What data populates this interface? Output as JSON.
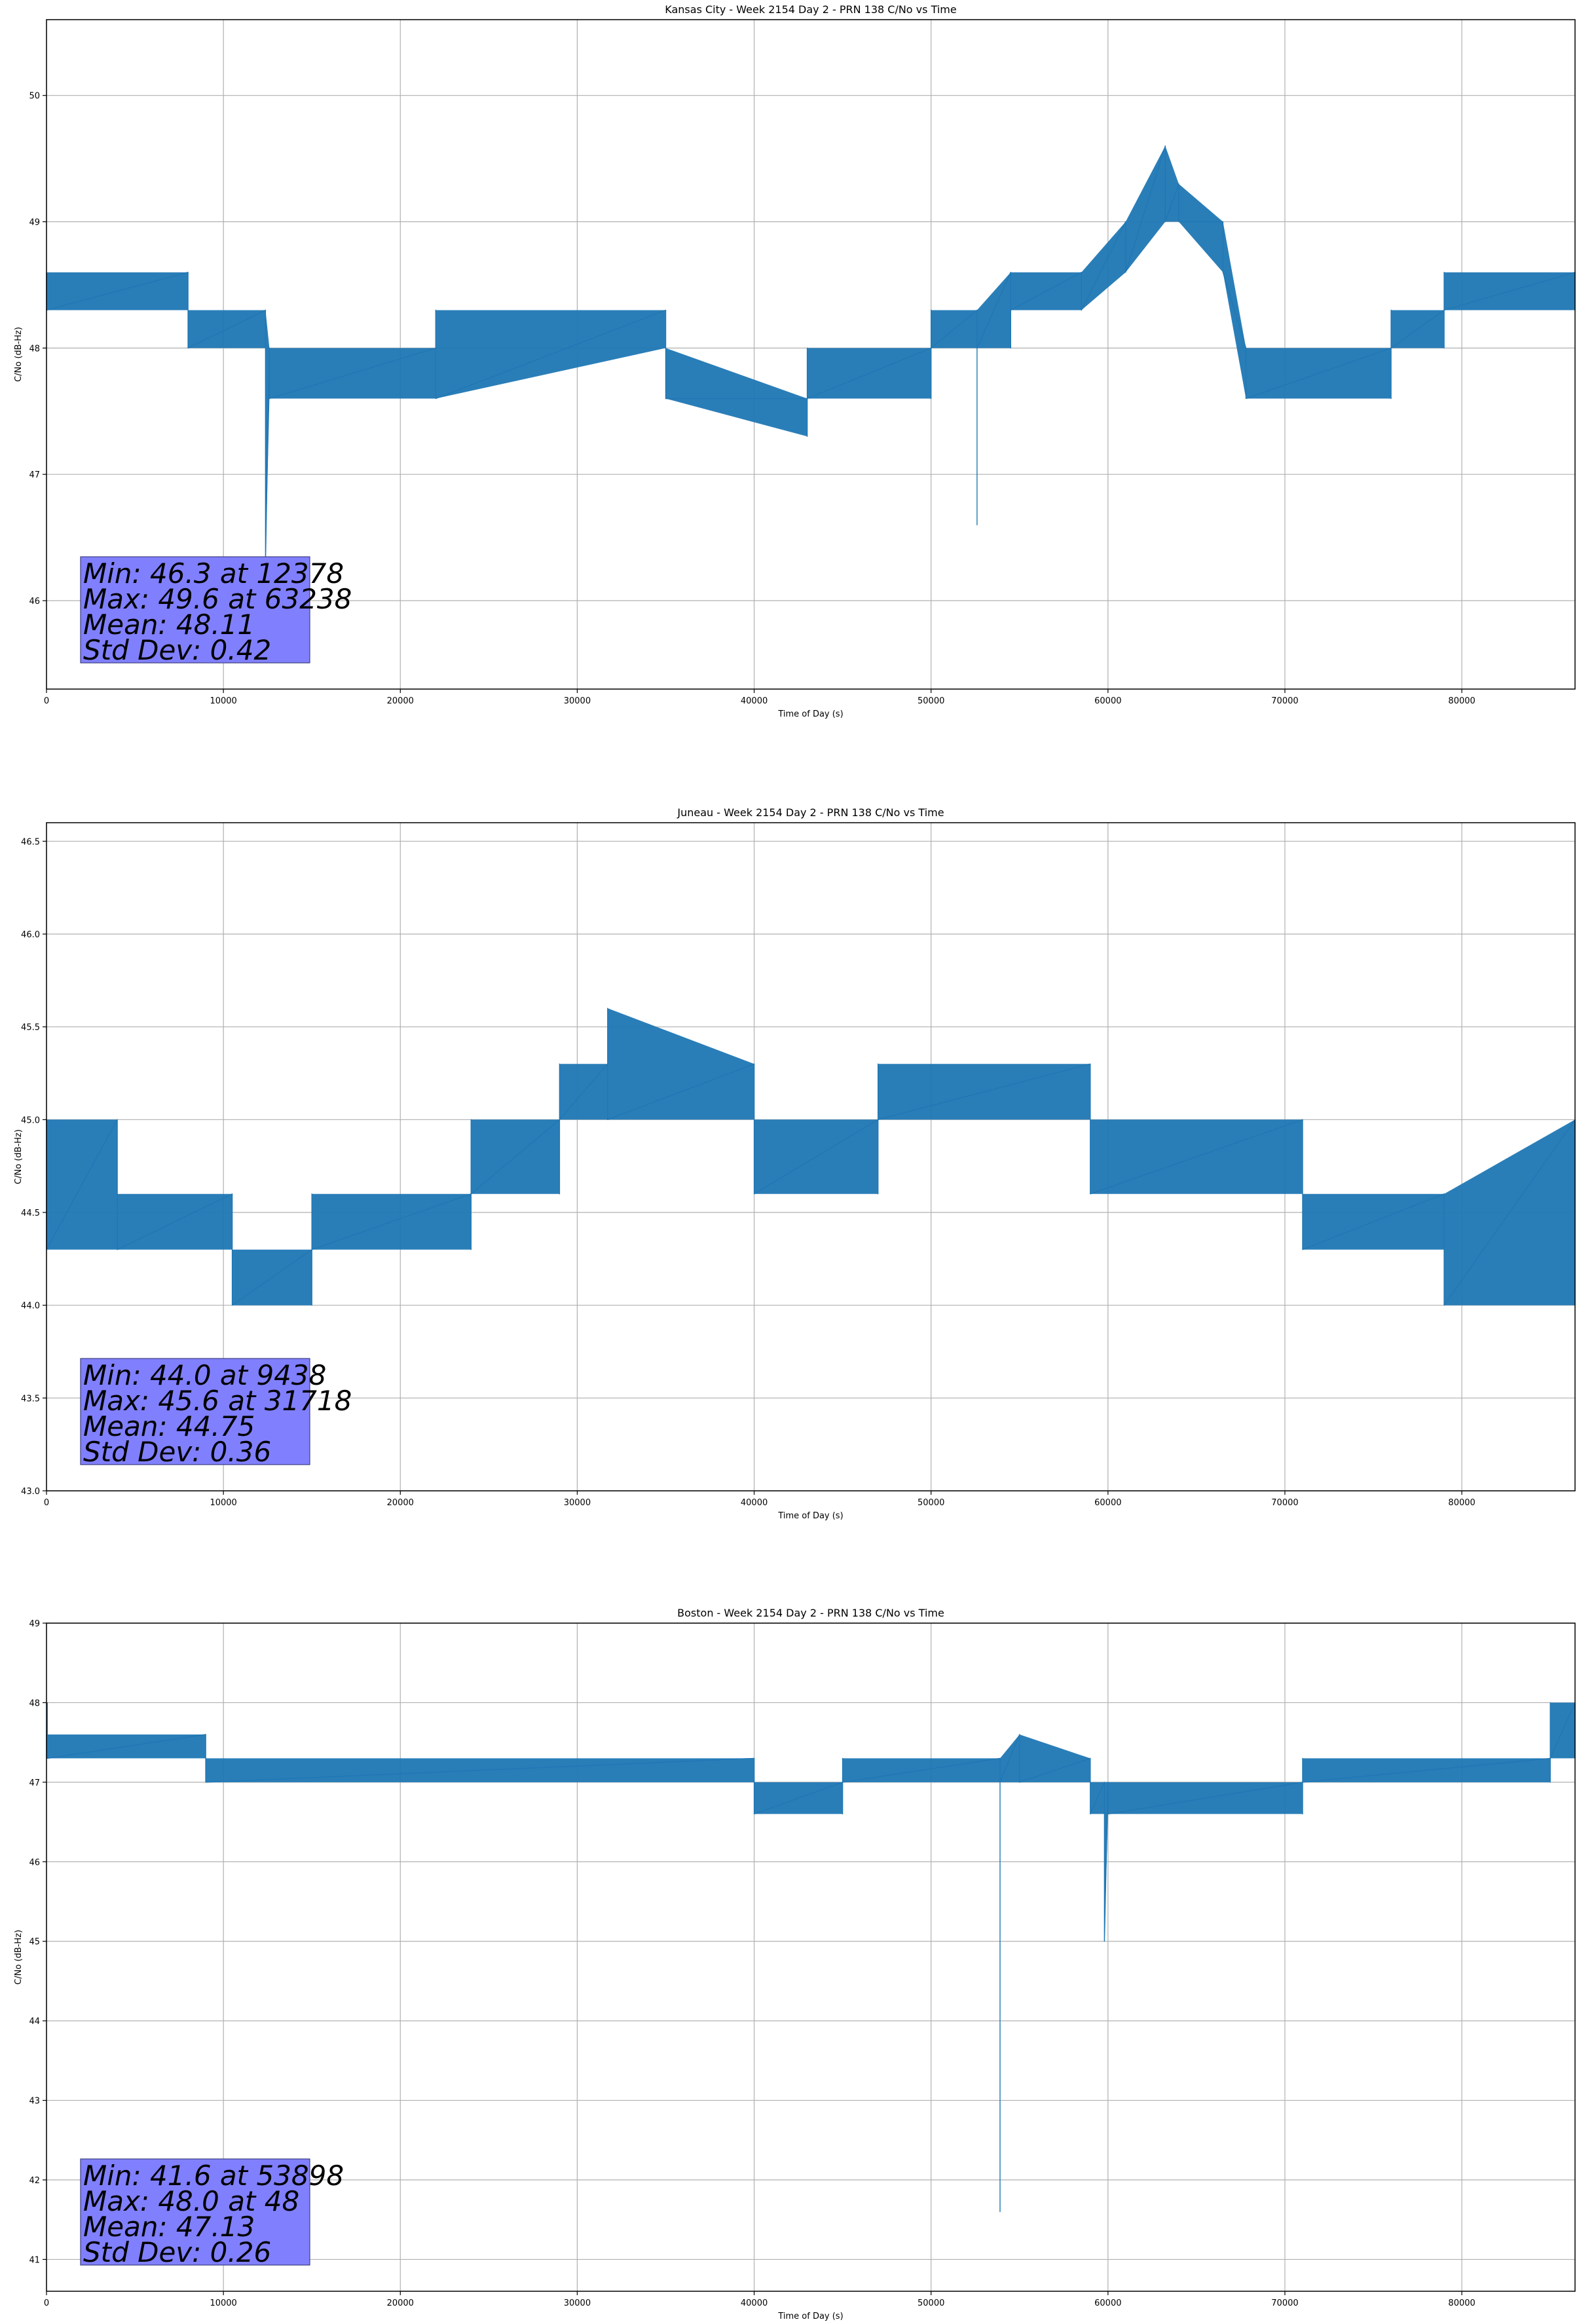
{
  "chart_data": [
    {
      "type": "line",
      "title": "Kansas City - Week 2154 Day 2 - PRN 138 C/No vs Time",
      "xlabel": "Time of Day (s)",
      "ylabel": "C/No (dB-Hz)",
      "xlim": [
        0,
        86400
      ],
      "ylim": [
        45.3,
        50.6
      ],
      "xticks": [
        0,
        10000,
        20000,
        30000,
        40000,
        50000,
        60000,
        70000,
        80000
      ],
      "yticks": [
        46,
        47,
        48,
        49,
        50
      ],
      "grid": true,
      "color": "#1f77b4",
      "stats_box": {
        "lines": [
          "Min: 46.3 at 12378",
          "Max: 49.6 at 63238",
          "Mean: 48.11",
          "Std Dev: 0.42"
        ],
        "color": "#8080ff",
        "position": "bottom-left"
      },
      "series": [
        {
          "x": [
            0,
            8000,
            8000,
            12378,
            12378,
            12378,
            12600,
            12600,
            22000,
            22000,
            35000,
            35000,
            43000,
            43000,
            50000,
            50000,
            52600,
            52600,
            52600,
            54500,
            54500,
            58500,
            58500,
            61000,
            61000,
            63238,
            63238,
            64000,
            66500,
            66500,
            67800,
            67800,
            76000,
            76000,
            79000,
            79000,
            86400
          ],
          "low": [
            48.3,
            48.3,
            48.0,
            48.0,
            46.3,
            46.3,
            47.6,
            47.6,
            47.6,
            47.6,
            48.0,
            47.6,
            47.3,
            47.6,
            47.6,
            48.0,
            48.0,
            46.6,
            48.0,
            48.0,
            48.3,
            48.3,
            48.3,
            48.6,
            48.6,
            49.0,
            49.0,
            49.0,
            48.6,
            48.6,
            47.6,
            47.6,
            47.6,
            48.0,
            48.0,
            48.3,
            48.3
          ],
          "high": [
            48.6,
            48.6,
            48.3,
            48.3,
            48.3,
            48.3,
            48.0,
            48.0,
            48.0,
            48.3,
            48.3,
            48.0,
            47.6,
            48.0,
            48.0,
            48.3,
            48.3,
            48.3,
            48.3,
            48.6,
            48.6,
            48.6,
            48.6,
            49.0,
            49.0,
            49.6,
            49.6,
            49.3,
            49.0,
            49.0,
            48.0,
            48.0,
            48.0,
            48.3,
            48.3,
            48.6,
            48.6
          ]
        }
      ]
    },
    {
      "type": "line",
      "title": "Juneau - Week 2154 Day 2 - PRN 138 C/No vs Time",
      "xlabel": "Time of Day (s)",
      "ylabel": "C/No (dB-Hz)",
      "xlim": [
        0,
        86400
      ],
      "ylim": [
        43.0,
        46.6
      ],
      "xticks": [
        0,
        10000,
        20000,
        30000,
        40000,
        50000,
        60000,
        70000,
        80000
      ],
      "yticks": [
        43.0,
        43.5,
        44.0,
        44.5,
        45.0,
        45.5,
        46.0,
        46.5
      ],
      "grid": true,
      "color": "#1f77b4",
      "stats_box": {
        "lines": [
          "Min: 44.0 at 9438",
          "Max: 45.6 at 31718",
          "Mean: 44.75",
          "Std Dev: 0.36"
        ],
        "color": "#8080ff",
        "position": "bottom-left"
      },
      "series": [
        {
          "x": [
            0,
            4000,
            4000,
            10500,
            10500,
            15000,
            15000,
            24000,
            24000,
            29000,
            29000,
            31718,
            31718,
            40000,
            40000,
            47000,
            47000,
            59000,
            59000,
            71000,
            71000,
            79000,
            79000,
            86400
          ],
          "low": [
            44.3,
            44.3,
            44.3,
            44.3,
            44.0,
            44.0,
            44.3,
            44.3,
            44.6,
            44.6,
            45.0,
            45.0,
            45.0,
            45.0,
            44.6,
            44.6,
            45.0,
            45.0,
            44.6,
            44.6,
            44.3,
            44.3,
            44.0,
            44.0
          ],
          "high": [
            45.0,
            45.0,
            44.6,
            44.6,
            44.3,
            44.3,
            44.6,
            44.6,
            45.0,
            45.0,
            45.3,
            45.3,
            45.6,
            45.3,
            45.0,
            45.0,
            45.3,
            45.3,
            45.0,
            45.0,
            44.6,
            44.6,
            44.6,
            45.0
          ]
        }
      ]
    },
    {
      "type": "line",
      "title": "Boston - Week 2154 Day 2 - PRN 138 C/No vs Time",
      "xlabel": "Time of Day (s)",
      "ylabel": "C/No (dB-Hz)",
      "xlim": [
        0,
        86400
      ],
      "ylim": [
        40.6,
        49.0
      ],
      "xticks": [
        0,
        10000,
        20000,
        30000,
        40000,
        50000,
        60000,
        70000,
        80000
      ],
      "yticks": [
        41,
        42,
        43,
        44,
        45,
        46,
        47,
        48,
        49
      ],
      "grid": true,
      "color": "#1f77b4",
      "stats_box": {
        "lines": [
          "Min: 41.6 at 53898",
          "Max: 48.0 at 48",
          "Mean: 47.13",
          "Std Dev: 0.26"
        ],
        "color": "#8080ff",
        "position": "bottom-left"
      },
      "series": [
        {
          "x": [
            0,
            48,
            48,
            9000,
            9000,
            40000,
            40000,
            45000,
            45000,
            53898,
            53898,
            53898,
            55000,
            59000,
            59000,
            59800,
            59800,
            60000,
            60000,
            71000,
            71000,
            85000,
            85000,
            86400
          ],
          "low": [
            47.3,
            47.3,
            47.3,
            47.3,
            47.0,
            47.0,
            46.6,
            46.6,
            47.0,
            47.0,
            41.6,
            47.0,
            47.0,
            47.0,
            46.6,
            46.6,
            45.0,
            46.6,
            46.6,
            46.6,
            47.0,
            47.0,
            47.3,
            47.3
          ],
          "high": [
            47.6,
            48.0,
            47.6,
            47.6,
            47.3,
            47.3,
            47.0,
            47.0,
            47.3,
            47.3,
            47.3,
            47.3,
            47.6,
            47.3,
            47.0,
            47.0,
            47.0,
            47.0,
            47.0,
            47.0,
            47.3,
            47.3,
            48.0,
            48.0
          ]
        }
      ]
    }
  ]
}
